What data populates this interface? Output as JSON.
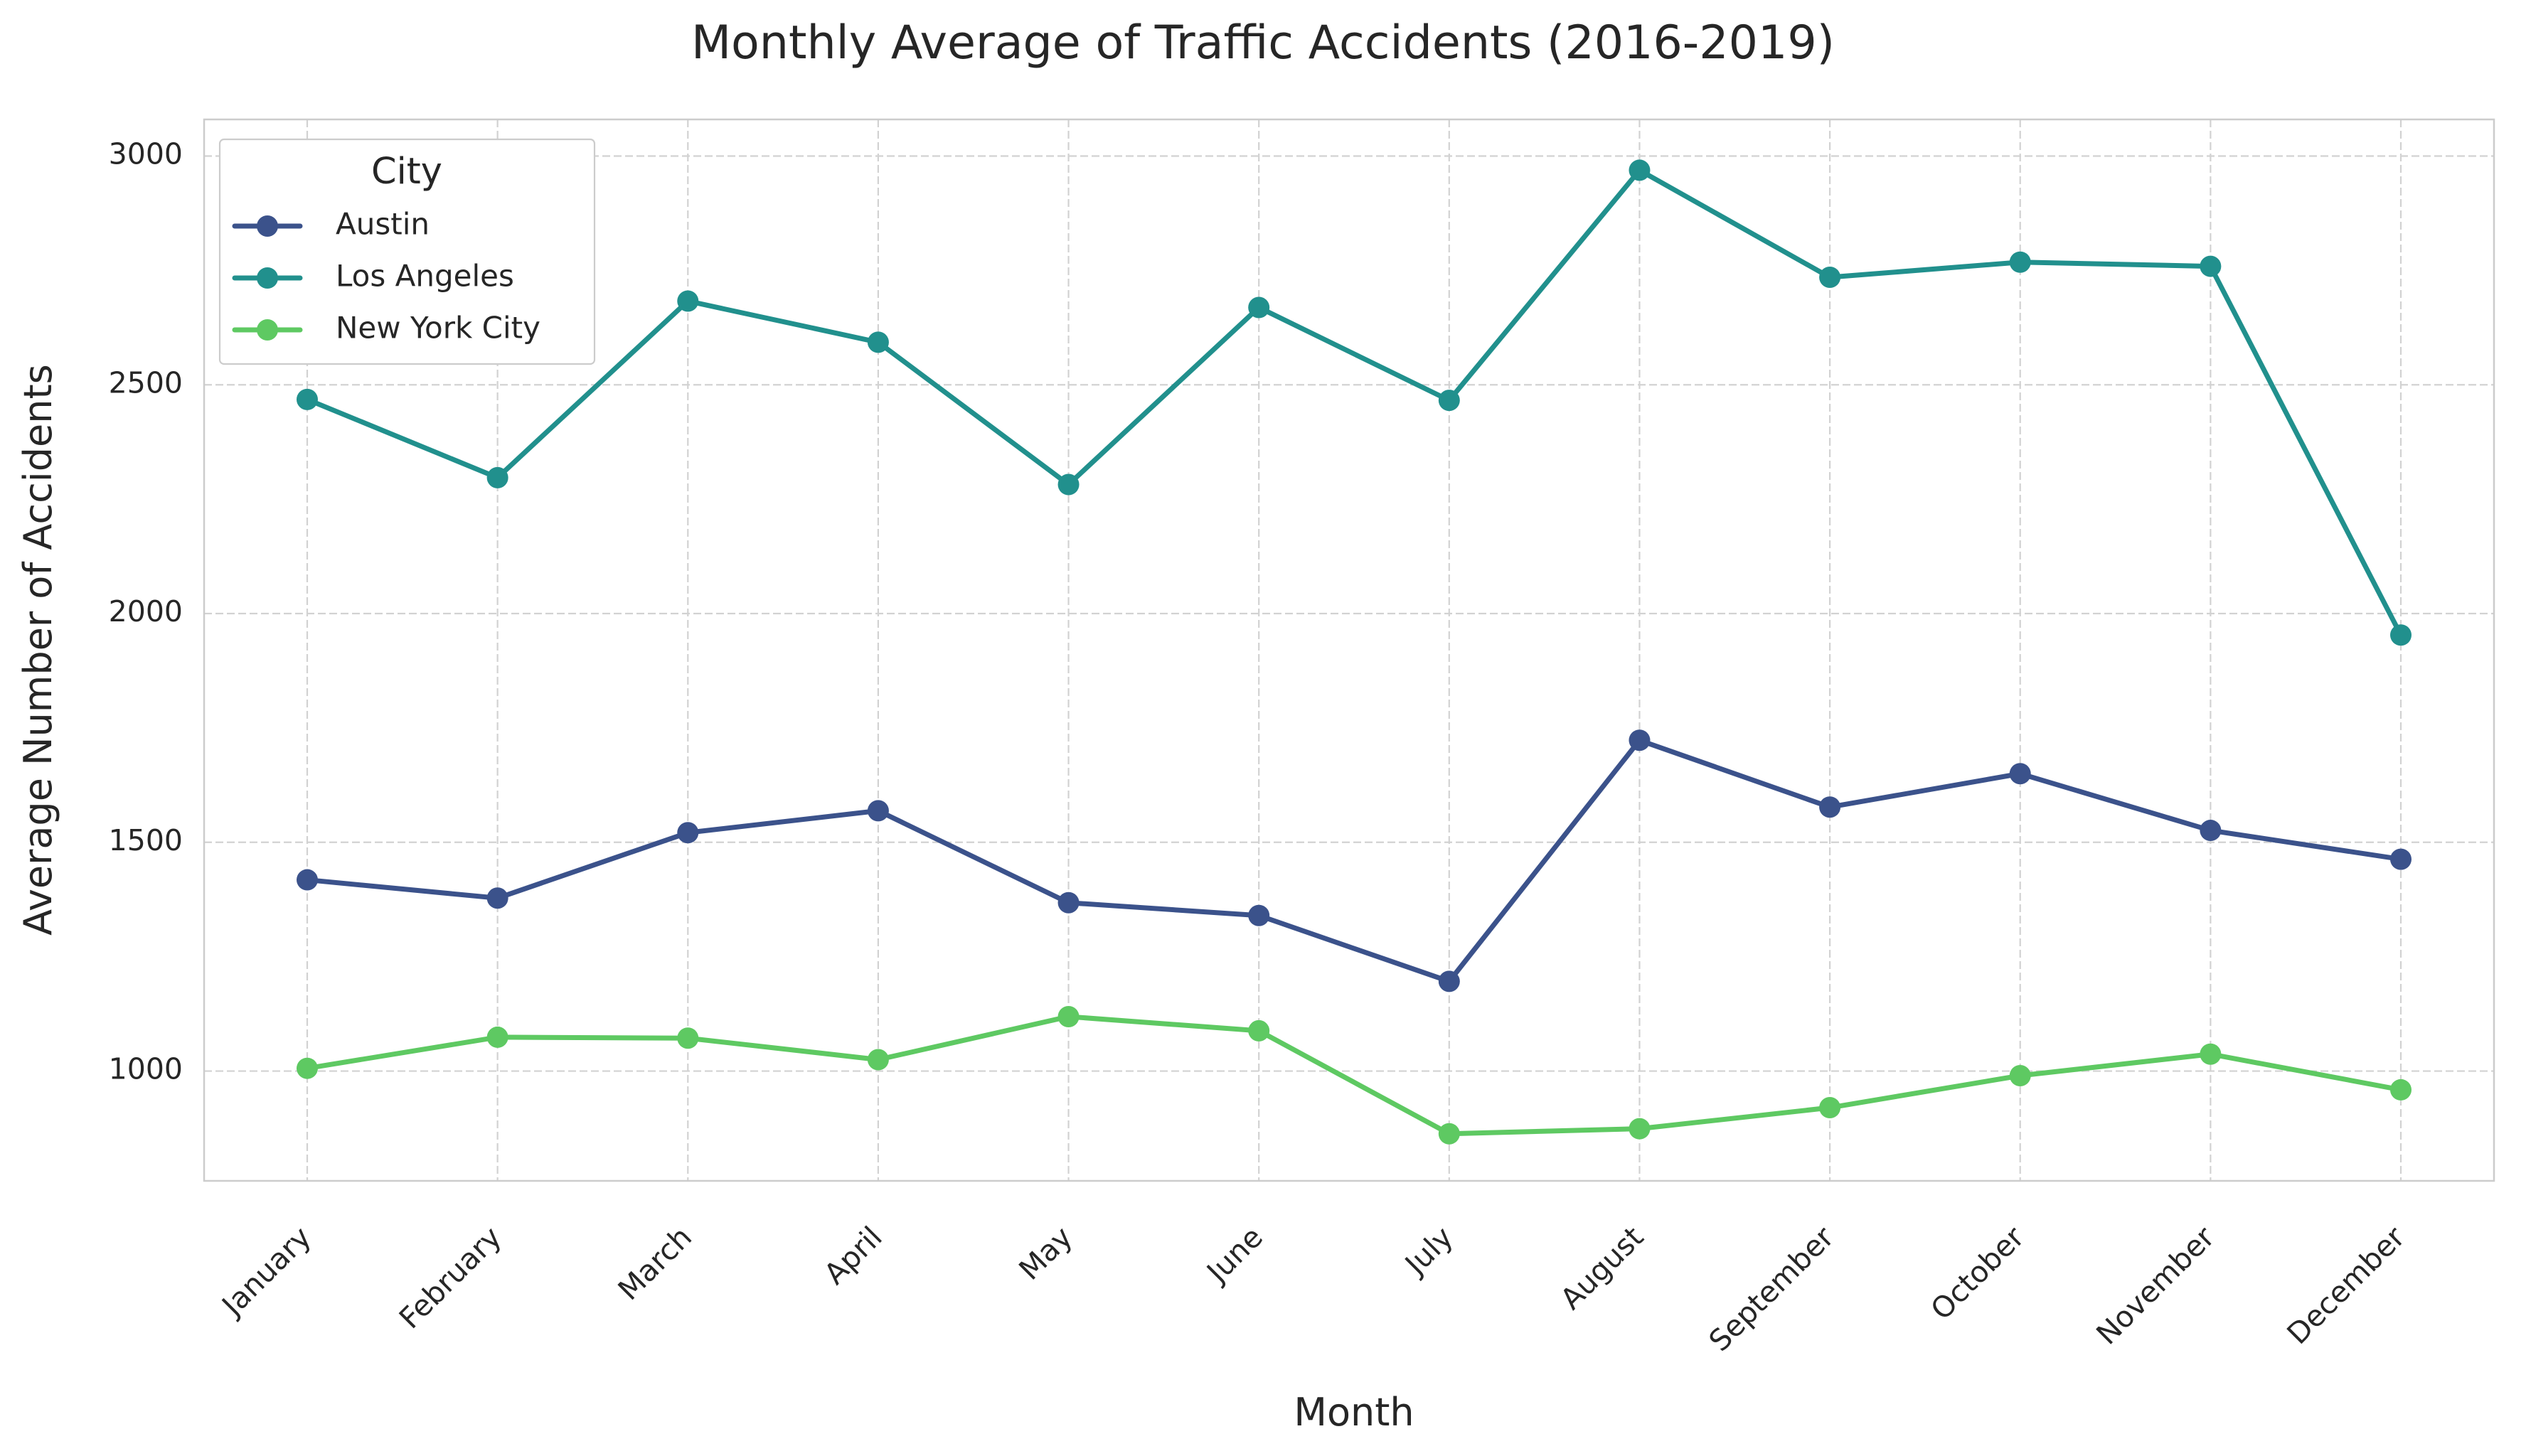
{
  "chart_data": {
    "type": "line",
    "title": "Monthly Average of Traffic Accidents (2016-2019)",
    "xlabel": "Month",
    "ylabel": "Average Number of Accidents",
    "categories": [
      "January",
      "February",
      "March",
      "April",
      "May",
      "June",
      "July",
      "August",
      "September",
      "October",
      "November",
      "December"
    ],
    "ylim": [
      760,
      3080
    ],
    "yticks": [
      1000,
      1500,
      2000,
      2500,
      3000
    ],
    "grid": true,
    "legend": {
      "title": "City",
      "placement": "top-left"
    },
    "series": [
      {
        "name": "Austin",
        "color": "#3b528b",
        "values": [
          1418,
          1378,
          1521,
          1569,
          1368,
          1340,
          1196,
          1723,
          1577,
          1650,
          1526,
          1463
        ]
      },
      {
        "name": "Los Angeles",
        "color": "#21908d",
        "values": [
          2468,
          2297,
          2683,
          2593,
          2282,
          2669,
          2466,
          2969,
          2735,
          2768,
          2759,
          1953
        ]
      },
      {
        "name": "New York City",
        "color": "#5ec962",
        "values": [
          1006,
          1074,
          1072,
          1025,
          1119,
          1088,
          863,
          874,
          920,
          990,
          1037,
          959
        ]
      }
    ]
  }
}
